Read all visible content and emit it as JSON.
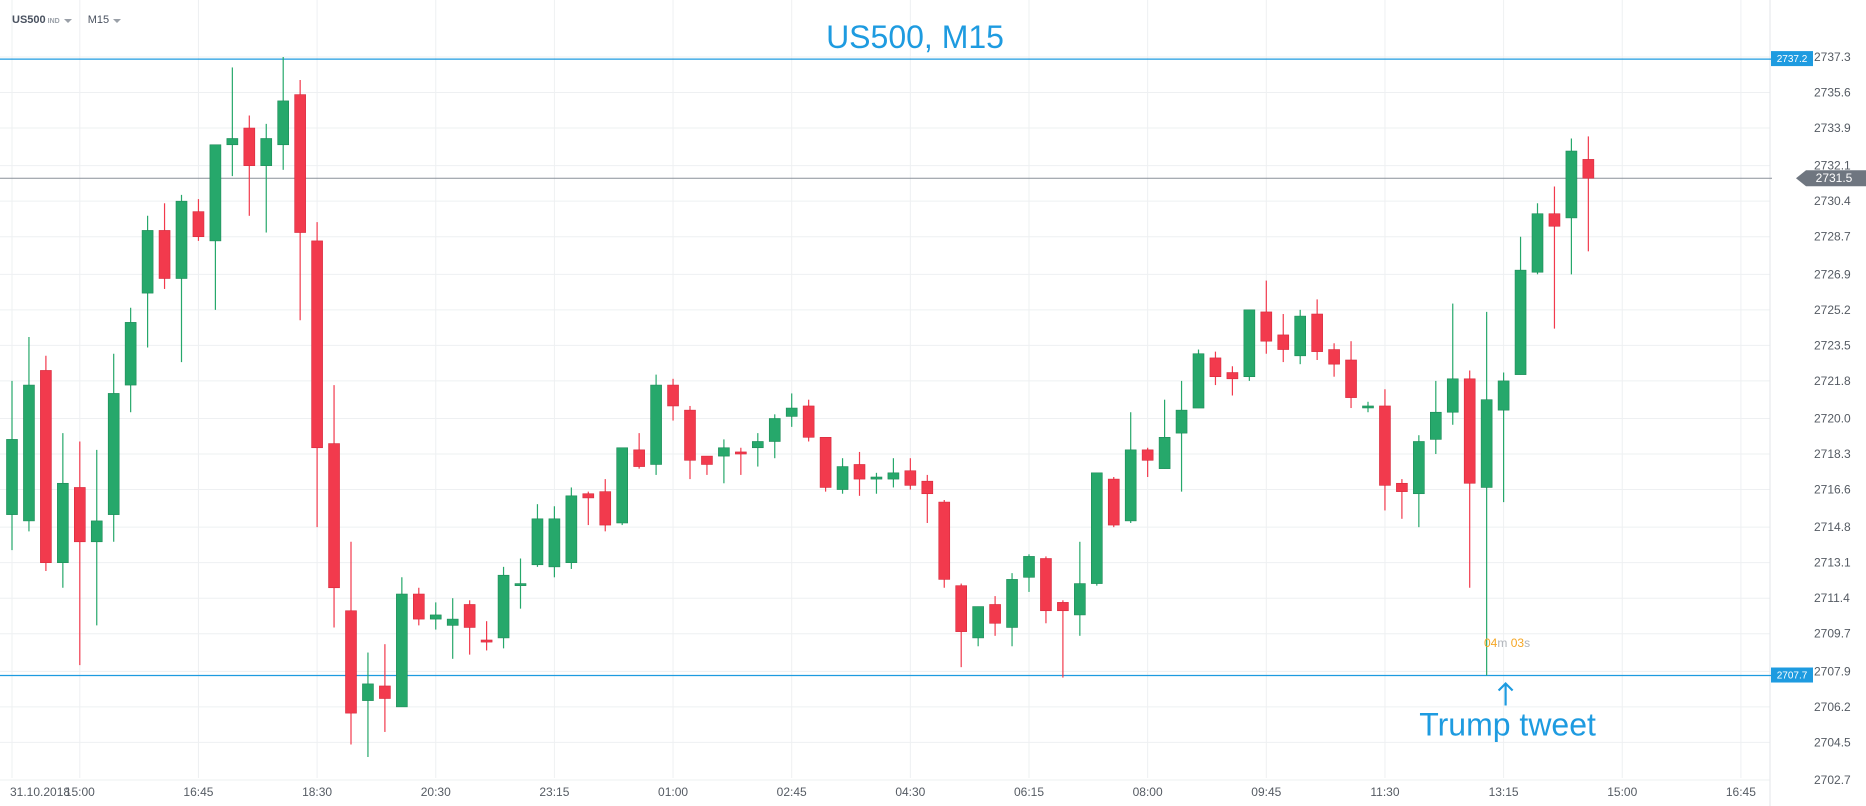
{
  "header": {
    "symbol": "US500",
    "symbol_tag": "IND",
    "timeframe": "M15"
  },
  "countdown": {
    "minutes": "04",
    "minutes_unit": "m",
    "seconds": "03",
    "seconds_unit": "s"
  },
  "colors": {
    "up": "#26a86b",
    "down": "#f23a4d",
    "annotation": "#1e9be0",
    "last_price": "#8a9099",
    "grid": "#eef0f2",
    "axis_text": "#555b63"
  },
  "chart_data": {
    "type": "candlestick",
    "title": "US500, M15",
    "y_range": [
      2702.7,
      2737.3
    ],
    "y_ticks": [
      "2737.3",
      "2735.6",
      "2733.9",
      "2732.1",
      "2730.4",
      "2728.7",
      "2726.9",
      "2725.2",
      "2723.5",
      "2721.8",
      "2720.0",
      "2718.3",
      "2716.6",
      "2714.8",
      "2713.1",
      "2711.4",
      "2709.7",
      "2707.9",
      "2706.2",
      "2704.5",
      "2702.7"
    ],
    "x_ticks": [
      {
        "label": "31.10.2018",
        "bar": 0
      },
      {
        "label": "15:00",
        "bar": 4
      },
      {
        "label": "16:45",
        "bar": 11
      },
      {
        "label": "18:30",
        "bar": 18
      },
      {
        "label": "20:30",
        "bar": 25
      },
      {
        "label": "23:15",
        "bar": 32
      },
      {
        "label": "01:00",
        "bar": 39
      },
      {
        "label": "02:45",
        "bar": 46
      },
      {
        "label": "04:30",
        "bar": 53
      },
      {
        "label": "06:15",
        "bar": 60
      },
      {
        "label": "08:00",
        "bar": 67
      },
      {
        "label": "09:45",
        "bar": 74
      },
      {
        "label": "11:30",
        "bar": 81
      },
      {
        "label": "13:15",
        "bar": 88
      },
      {
        "label": "15:00",
        "bar": 95
      },
      {
        "label": "16:45",
        "bar": 102
      }
    ],
    "horizontal_lines": [
      {
        "label": "2737.2",
        "value": 2737.2
      },
      {
        "label": "2707.7",
        "value": 2707.7
      }
    ],
    "last_price": {
      "label": "2731.5",
      "value": 2731.5
    },
    "annotation": {
      "text": "Trump tweet",
      "bar": 88,
      "value": 2707.7
    },
    "candles": [
      {
        "o": 2715.4,
        "h": 2721.8,
        "l": 2713.7,
        "c": 2719.0
      },
      {
        "o": 2715.1,
        "h": 2723.9,
        "l": 2714.6,
        "c": 2721.6
      },
      {
        "o": 2722.3,
        "h": 2723.0,
        "l": 2712.7,
        "c": 2713.1
      },
      {
        "o": 2713.1,
        "h": 2719.3,
        "l": 2711.9,
        "c": 2716.9
      },
      {
        "o": 2716.7,
        "h": 2718.9,
        "l": 2708.2,
        "c": 2714.1
      },
      {
        "o": 2714.1,
        "h": 2718.5,
        "l": 2710.1,
        "c": 2715.1
      },
      {
        "o": 2715.4,
        "h": 2723.1,
        "l": 2714.1,
        "c": 2721.2
      },
      {
        "o": 2721.6,
        "h": 2725.3,
        "l": 2720.3,
        "c": 2724.6
      },
      {
        "o": 2726.0,
        "h": 2729.7,
        "l": 2723.4,
        "c": 2729.0
      },
      {
        "o": 2729.0,
        "h": 2730.3,
        "l": 2726.2,
        "c": 2726.7
      },
      {
        "o": 2726.7,
        "h": 2730.7,
        "l": 2722.7,
        "c": 2730.4
      },
      {
        "o": 2729.9,
        "h": 2730.5,
        "l": 2728.5,
        "c": 2728.7
      },
      {
        "o": 2728.5,
        "h": 2733.1,
        "l": 2725.2,
        "c": 2733.1
      },
      {
        "o": 2733.1,
        "h": 2736.8,
        "l": 2731.6,
        "c": 2733.4
      },
      {
        "o": 2733.9,
        "h": 2734.5,
        "l": 2729.7,
        "c": 2732.1
      },
      {
        "o": 2732.1,
        "h": 2734.1,
        "l": 2728.9,
        "c": 2733.4
      },
      {
        "o": 2733.1,
        "h": 2737.3,
        "l": 2731.9,
        "c": 2735.2
      },
      {
        "o": 2735.5,
        "h": 2736.2,
        "l": 2724.7,
        "c": 2728.9
      },
      {
        "o": 2728.5,
        "h": 2729.4,
        "l": 2714.8,
        "c": 2718.6
      },
      {
        "o": 2718.8,
        "h": 2721.6,
        "l": 2710.0,
        "c": 2711.9
      },
      {
        "o": 2710.8,
        "h": 2714.1,
        "l": 2704.4,
        "c": 2705.9
      },
      {
        "o": 2706.5,
        "h": 2708.8,
        "l": 2703.8,
        "c": 2707.3
      },
      {
        "o": 2707.2,
        "h": 2709.2,
        "l": 2705.0,
        "c": 2706.6
      },
      {
        "o": 2706.2,
        "h": 2712.4,
        "l": 2706.2,
        "c": 2711.6
      },
      {
        "o": 2711.6,
        "h": 2711.9,
        "l": 2710.1,
        "c": 2710.4
      },
      {
        "o": 2710.4,
        "h": 2711.2,
        "l": 2709.9,
        "c": 2710.6
      },
      {
        "o": 2710.1,
        "h": 2711.4,
        "l": 2708.5,
        "c": 2710.4
      },
      {
        "o": 2711.1,
        "h": 2711.3,
        "l": 2708.7,
        "c": 2710.0
      },
      {
        "o": 2709.4,
        "h": 2710.3,
        "l": 2708.9,
        "c": 2709.3
      },
      {
        "o": 2709.5,
        "h": 2712.9,
        "l": 2709.0,
        "c": 2712.5
      },
      {
        "o": 2712.0,
        "h": 2713.3,
        "l": 2710.9,
        "c": 2712.1
      },
      {
        "o": 2713.0,
        "h": 2715.9,
        "l": 2712.9,
        "c": 2715.2
      },
      {
        "o": 2712.9,
        "h": 2715.8,
        "l": 2712.4,
        "c": 2715.2
      },
      {
        "o": 2713.1,
        "h": 2716.7,
        "l": 2712.8,
        "c": 2716.3
      },
      {
        "o": 2716.4,
        "h": 2716.5,
        "l": 2714.9,
        "c": 2716.2
      },
      {
        "o": 2716.5,
        "h": 2717.1,
        "l": 2714.6,
        "c": 2714.9
      },
      {
        "o": 2715.0,
        "h": 2718.6,
        "l": 2714.9,
        "c": 2718.6
      },
      {
        "o": 2718.5,
        "h": 2719.3,
        "l": 2717.6,
        "c": 2717.7
      },
      {
        "o": 2717.8,
        "h": 2722.1,
        "l": 2717.3,
        "c": 2721.6
      },
      {
        "o": 2721.6,
        "h": 2721.9,
        "l": 2719.9,
        "c": 2720.6
      },
      {
        "o": 2720.4,
        "h": 2720.6,
        "l": 2717.1,
        "c": 2718.0
      },
      {
        "o": 2718.2,
        "h": 2718.2,
        "l": 2717.3,
        "c": 2717.8
      },
      {
        "o": 2718.2,
        "h": 2719.0,
        "l": 2716.9,
        "c": 2718.6
      },
      {
        "o": 2718.4,
        "h": 2718.6,
        "l": 2717.3,
        "c": 2718.3
      },
      {
        "o": 2718.6,
        "h": 2719.3,
        "l": 2717.7,
        "c": 2718.9
      },
      {
        "o": 2718.9,
        "h": 2720.2,
        "l": 2718.1,
        "c": 2720.0
      },
      {
        "o": 2720.1,
        "h": 2721.2,
        "l": 2719.6,
        "c": 2720.5
      },
      {
        "o": 2720.6,
        "h": 2720.9,
        "l": 2718.9,
        "c": 2719.1
      },
      {
        "o": 2719.1,
        "h": 2719.1,
        "l": 2716.5,
        "c": 2716.7
      },
      {
        "o": 2716.6,
        "h": 2718.1,
        "l": 2716.4,
        "c": 2717.7
      },
      {
        "o": 2717.8,
        "h": 2718.4,
        "l": 2716.3,
        "c": 2717.1
      },
      {
        "o": 2717.1,
        "h": 2717.4,
        "l": 2716.4,
        "c": 2717.2
      },
      {
        "o": 2717.1,
        "h": 2718.1,
        "l": 2716.7,
        "c": 2717.4
      },
      {
        "o": 2717.5,
        "h": 2718.1,
        "l": 2716.6,
        "c": 2716.8
      },
      {
        "o": 2717.0,
        "h": 2717.3,
        "l": 2715.0,
        "c": 2716.4
      },
      {
        "o": 2716.0,
        "h": 2716.1,
        "l": 2711.9,
        "c": 2712.3
      },
      {
        "o": 2712.0,
        "h": 2712.1,
        "l": 2708.1,
        "c": 2709.8
      },
      {
        "o": 2709.5,
        "h": 2711.0,
        "l": 2709.1,
        "c": 2711.0
      },
      {
        "o": 2711.1,
        "h": 2711.5,
        "l": 2709.6,
        "c": 2710.2
      },
      {
        "o": 2710.0,
        "h": 2712.6,
        "l": 2709.1,
        "c": 2712.3
      },
      {
        "o": 2712.4,
        "h": 2713.5,
        "l": 2711.7,
        "c": 2713.4
      },
      {
        "o": 2713.3,
        "h": 2713.4,
        "l": 2710.2,
        "c": 2710.8
      },
      {
        "o": 2711.2,
        "h": 2711.3,
        "l": 2707.6,
        "c": 2710.8
      },
      {
        "o": 2710.6,
        "h": 2714.1,
        "l": 2709.6,
        "c": 2712.1
      },
      {
        "o": 2712.1,
        "h": 2717.4,
        "l": 2712.0,
        "c": 2717.4
      },
      {
        "o": 2717.1,
        "h": 2717.2,
        "l": 2714.8,
        "c": 2714.9
      },
      {
        "o": 2715.1,
        "h": 2720.3,
        "l": 2715.0,
        "c": 2718.5
      },
      {
        "o": 2718.5,
        "h": 2718.6,
        "l": 2717.2,
        "c": 2718.0
      },
      {
        "o": 2717.6,
        "h": 2720.9,
        "l": 2717.6,
        "c": 2719.1
      },
      {
        "o": 2719.3,
        "h": 2721.8,
        "l": 2716.5,
        "c": 2720.4
      },
      {
        "o": 2720.5,
        "h": 2723.3,
        "l": 2720.5,
        "c": 2723.1
      },
      {
        "o": 2722.9,
        "h": 2723.2,
        "l": 2721.6,
        "c": 2722.0
      },
      {
        "o": 2722.2,
        "h": 2722.5,
        "l": 2721.1,
        "c": 2721.9
      },
      {
        "o": 2722.0,
        "h": 2725.2,
        "l": 2721.8,
        "c": 2725.2
      },
      {
        "o": 2725.1,
        "h": 2726.6,
        "l": 2723.1,
        "c": 2723.7
      },
      {
        "o": 2724.0,
        "h": 2725.0,
        "l": 2722.7,
        "c": 2723.3
      },
      {
        "o": 2723.0,
        "h": 2725.2,
        "l": 2722.6,
        "c": 2724.9
      },
      {
        "o": 2725.0,
        "h": 2725.7,
        "l": 2722.8,
        "c": 2723.2
      },
      {
        "o": 2723.3,
        "h": 2723.6,
        "l": 2722.0,
        "c": 2722.6
      },
      {
        "o": 2722.8,
        "h": 2723.7,
        "l": 2720.5,
        "c": 2721.0
      },
      {
        "o": 2720.6,
        "h": 2720.8,
        "l": 2720.3,
        "c": 2720.6
      },
      {
        "o": 2720.6,
        "h": 2721.4,
        "l": 2715.6,
        "c": 2716.8
      },
      {
        "o": 2716.9,
        "h": 2717.1,
        "l": 2715.2,
        "c": 2716.5
      },
      {
        "o": 2716.4,
        "h": 2719.2,
        "l": 2714.8,
        "c": 2718.9
      },
      {
        "o": 2719.0,
        "h": 2721.8,
        "l": 2718.3,
        "c": 2720.3
      },
      {
        "o": 2720.3,
        "h": 2725.5,
        "l": 2719.7,
        "c": 2721.9
      },
      {
        "o": 2721.9,
        "h": 2722.3,
        "l": 2711.9,
        "c": 2716.9
      },
      {
        "o": 2716.7,
        "h": 2725.1,
        "l": 2707.7,
        "c": 2720.9
      },
      {
        "o": 2720.4,
        "h": 2722.2,
        "l": 2716.0,
        "c": 2721.8
      },
      {
        "o": 2722.1,
        "h": 2728.7,
        "l": 2722.1,
        "c": 2727.1
      },
      {
        "o": 2727.0,
        "h": 2730.3,
        "l": 2726.9,
        "c": 2729.8
      },
      {
        "o": 2729.8,
        "h": 2731.1,
        "l": 2724.3,
        "c": 2729.2
      },
      {
        "o": 2729.6,
        "h": 2733.4,
        "l": 2726.9,
        "c": 2732.8
      },
      {
        "o": 2732.4,
        "h": 2733.5,
        "l": 2728.0,
        "c": 2731.5
      }
    ]
  }
}
